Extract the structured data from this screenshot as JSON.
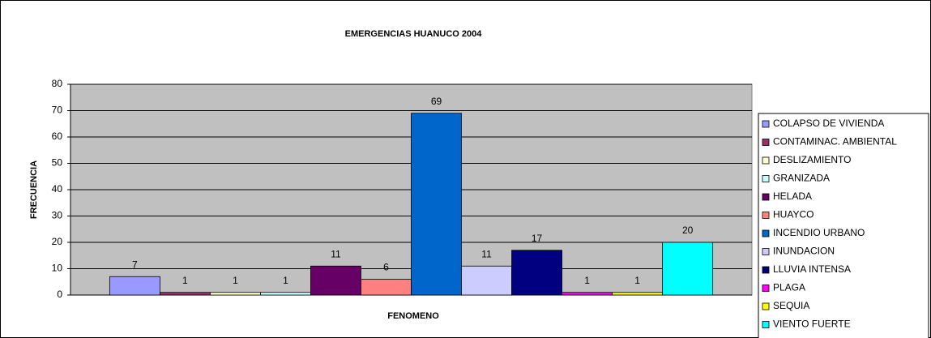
{
  "chart_data": {
    "type": "bar",
    "title": "EMERGENCIAS HUANUCO 2004",
    "x_label": "FENOMENO",
    "y_label": "FRECUENCIA",
    "categories": [
      null
    ],
    "series": [
      {
        "name": "COLAPSO DE VIVIENDA",
        "color": "#9999ff",
        "values": [
          7
        ]
      },
      {
        "name": "CONTAMINAC. AMBIENTAL",
        "color": "#993366",
        "values": [
          1
        ]
      },
      {
        "name": "DESLIZAMIENTO",
        "color": "#ffffcc",
        "values": [
          1
        ]
      },
      {
        "name": "GRANIZADA",
        "color": "#ccffff",
        "values": [
          1
        ]
      },
      {
        "name": "HELADA",
        "color": "#660066",
        "values": [
          11
        ]
      },
      {
        "name": "HUAYCO",
        "color": "#ff8080",
        "values": [
          6
        ]
      },
      {
        "name": "INCENDIO URBANO",
        "color": "#0066cc",
        "values": [
          69
        ]
      },
      {
        "name": "INUNDACION",
        "color": "#ccccff",
        "values": [
          11
        ]
      },
      {
        "name": "LLUVIA INTENSA",
        "color": "#000080",
        "values": [
          17
        ]
      },
      {
        "name": "PLAGA",
        "color": "#ff00ff",
        "values": [
          1
        ]
      },
      {
        "name": "SEQUIA",
        "color": "#ffff00",
        "values": [
          1
        ]
      },
      {
        "name": "VIENTO FUERTE",
        "color": "#00ffff",
        "values": [
          20
        ]
      }
    ],
    "ylim": [
      0,
      80
    ],
    "yticks": [
      0,
      10,
      20,
      30,
      40,
      50,
      60,
      70,
      80
    ],
    "grid": true,
    "plot_background": "#c0c0c0",
    "legend": "right"
  }
}
